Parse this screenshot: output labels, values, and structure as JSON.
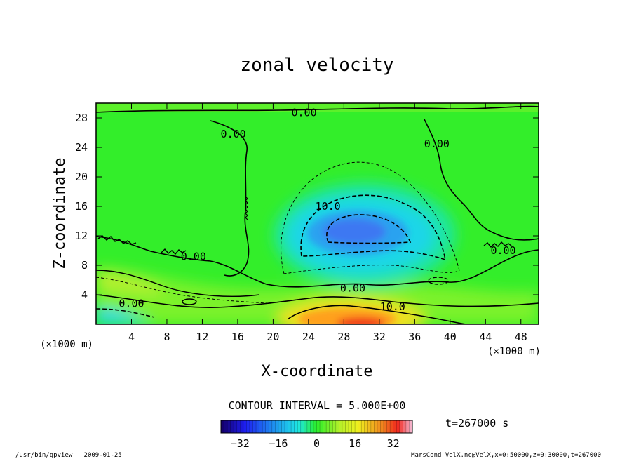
{
  "chart_data": {
    "type": "heatmap",
    "title": "zonal velocity",
    "xlabel": "X-coordinate",
    "ylabel": "Z-coordinate",
    "x_unit": "(×1000 m)",
    "y_unit": "(×1000 m)",
    "xlim": [
      0,
      50
    ],
    "ylim": [
      0,
      30
    ],
    "x_ticks": [
      4,
      8,
      12,
      16,
      20,
      24,
      28,
      32,
      36,
      40,
      44,
      48
    ],
    "y_ticks": [
      4,
      8,
      12,
      16,
      20,
      24,
      28
    ],
    "contour_interval_label": "CONTOUR INTERVAL = 5.000E+00",
    "time_label": "t=267000 s",
    "colorbar": {
      "min": -40,
      "max": 40,
      "ticks": [
        -32,
        -16,
        0,
        16,
        32
      ]
    },
    "contour_labels": [
      {
        "text": "0.00",
        "x": 23.5,
        "z": 28.7
      },
      {
        "text": "0.00",
        "x": 15.5,
        "z": 25.8
      },
      {
        "text": "0.00",
        "x": 38.5,
        "z": 24.5
      },
      {
        "text": "10.0",
        "x": 26.2,
        "z": 16.0
      },
      {
        "text": "0.00",
        "x": 11.0,
        "z": 9.2
      },
      {
        "text": "0.00",
        "x": 46.0,
        "z": 10.0
      },
      {
        "text": "0.00",
        "x": 29.0,
        "z": 4.9
      },
      {
        "text": "0.00",
        "x": 4.0,
        "z": 2.8
      },
      {
        "text": "10.0",
        "x": 33.5,
        "z": 2.4
      }
    ],
    "features": [
      {
        "kind": "negative-jet",
        "center_x": 29.5,
        "center_z": 12.0,
        "min_value": -15
      },
      {
        "kind": "positive-jet",
        "center_x": 30.0,
        "center_z": 0.5,
        "max_value": 25
      }
    ]
  },
  "footer": {
    "left": "/usr/bin/gpview   2009-01-25",
    "right": "MarsCond_VelX.nc@VelX,x=0:50000,z=0:30000,t=267000"
  },
  "colors": {
    "background_field": "#33ee2a",
    "frame": "#000000"
  }
}
